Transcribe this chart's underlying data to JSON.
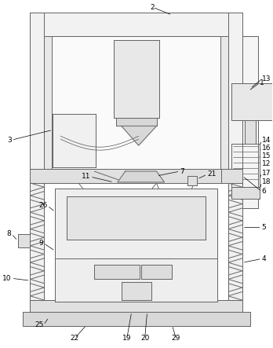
{
  "figure_width": 3.48,
  "figure_height": 4.43,
  "dpi": 100,
  "bg_color": "#ffffff",
  "line_color": "#666666",
  "line_width": 0.7,
  "label_fontsize": 6.5
}
